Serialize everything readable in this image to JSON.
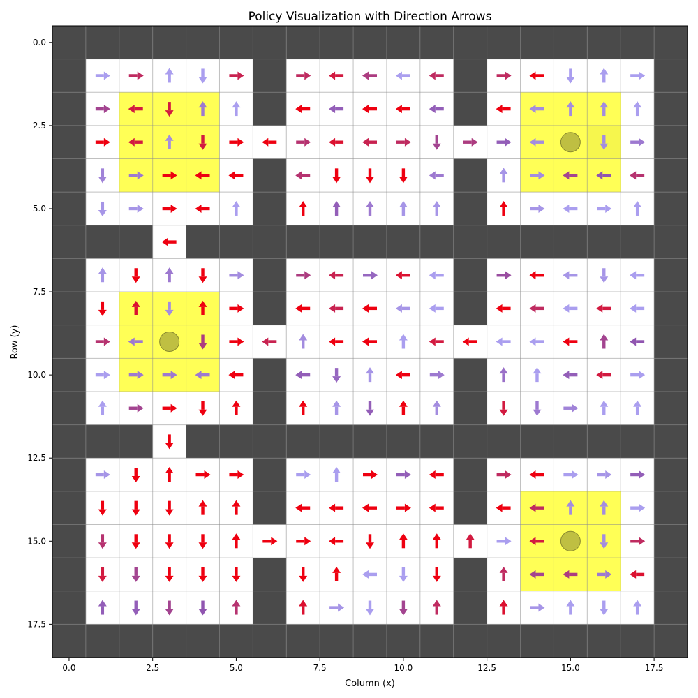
{
  "chart_data": {
    "type": "heatmap",
    "title": "Policy Visualization with Direction Arrows",
    "xlabel": "Column (x)",
    "ylabel": "Row (y)",
    "xlim": [
      -0.5,
      18.5
    ],
    "ylim": [
      18.5,
      -0.5
    ],
    "x_ticks": [
      0.0,
      2.5,
      5.0,
      7.5,
      10.0,
      12.5,
      15.0,
      17.5
    ],
    "x_tick_labels": [
      "0.0",
      "2.5",
      "5.0",
      "7.5",
      "10.0",
      "12.5",
      "15.0",
      "17.5"
    ],
    "y_ticks": [
      0.0,
      2.5,
      5.0,
      7.5,
      10.0,
      12.5,
      15.0,
      17.5
    ],
    "y_tick_labels": [
      "0.0",
      "2.5",
      "5.0",
      "7.5",
      "10.0",
      "12.5",
      "15.0",
      "17.5"
    ],
    "grid": true,
    "colors": {
      "wall": "#4a4a4a",
      "floor": "#ffffff",
      "region": "#ffff4d",
      "goal": "#b8b840",
      "grid_line": "#8c8c8c",
      "confidence_low": "#b0b0ff",
      "confidence_mid": "#9055b0",
      "confidence_high": "#ee0010"
    },
    "grid_rows": [
      "###################",
      "#.....#.....#.....#",
      "#.....#.....#.....#",
      "#...............#.#",
      "#.....#.....#.....#",
      "#.....#.....#.....#",
      "###.###############",
      "#.....#.....#.....#",
      "#.....#.....#.....#",
      "#.................#",
      "#.....#.....#.....#",
      "#.....#.....#.....#",
      "###.###############",
      "#.....#.....#.....#",
      "#.....#.....#.....#",
      "#.................#",
      "#.....#.....#.....#",
      "#.....#.....#.....#",
      "###################"
    ],
    "highlight_regions": [
      {
        "x": [
          2,
          4
        ],
        "y": [
          2,
          4
        ]
      },
      {
        "x": [
          14,
          16
        ],
        "y": [
          2,
          4
        ]
      },
      {
        "x": [
          2,
          4
        ],
        "y": [
          8,
          10
        ]
      },
      {
        "x": [
          14,
          16
        ],
        "y": [
          14,
          16
        ]
      }
    ],
    "goal_points": [
      [
        15,
        3
      ],
      [
        3,
        9
      ],
      [
        15,
        15
      ]
    ],
    "arrows": [
      [
        1,
        1,
        "R",
        0.1
      ],
      [
        2,
        1,
        "R",
        0.75
      ],
      [
        3,
        1,
        "U",
        0.1
      ],
      [
        4,
        1,
        "D",
        0.1
      ],
      [
        5,
        1,
        "R",
        0.8
      ],
      [
        7,
        1,
        "R",
        0.75
      ],
      [
        8,
        1,
        "L",
        0.85
      ],
      [
        9,
        1,
        "L",
        0.65
      ],
      [
        10,
        1,
        "L",
        0.1
      ],
      [
        11,
        1,
        "L",
        0.75
      ],
      [
        13,
        1,
        "R",
        0.75
      ],
      [
        14,
        1,
        "L",
        1
      ],
      [
        15,
        1,
        "D",
        0.1
      ],
      [
        16,
        1,
        "U",
        0.1
      ],
      [
        17,
        1,
        "R",
        0.1
      ],
      [
        1,
        2,
        "R",
        0.6
      ],
      [
        2,
        2,
        "L",
        0.85
      ],
      [
        3,
        2,
        "D",
        0.85
      ],
      [
        4,
        2,
        "U",
        0.3
      ],
      [
        5,
        2,
        "U",
        0.1
      ],
      [
        7,
        2,
        "L",
        1
      ],
      [
        8,
        2,
        "L",
        0.45
      ],
      [
        9,
        2,
        "L",
        1
      ],
      [
        10,
        2,
        "L",
        1
      ],
      [
        11,
        2,
        "L",
        0.45
      ],
      [
        13,
        2,
        "L",
        1
      ],
      [
        14,
        2,
        "L",
        0.2
      ],
      [
        15,
        2,
        "U",
        0.2
      ],
      [
        16,
        2,
        "U",
        0.2
      ],
      [
        17,
        2,
        "U",
        0.1
      ],
      [
        1,
        3,
        "R",
        1
      ],
      [
        2,
        3,
        "L",
        0.85
      ],
      [
        3,
        3,
        "U",
        0.2
      ],
      [
        4,
        3,
        "D",
        0.85
      ],
      [
        5,
        3,
        "R",
        1
      ],
      [
        6,
        3,
        "L",
        1
      ],
      [
        7,
        3,
        "R",
        0.7
      ],
      [
        8,
        3,
        "L",
        0.9
      ],
      [
        9,
        3,
        "L",
        0.8
      ],
      [
        10,
        3,
        "R",
        0.75
      ],
      [
        11,
        3,
        "D",
        0.6
      ],
      [
        12,
        3,
        "R",
        0.65
      ],
      [
        13,
        3,
        "R",
        0.45
      ],
      [
        14,
        3,
        "L",
        0.2
      ],
      [
        16,
        3,
        "D",
        0.2
      ],
      [
        17,
        3,
        "R",
        0.3
      ],
      [
        1,
        4,
        "D",
        0.25
      ],
      [
        2,
        4,
        "R",
        0.3
      ],
      [
        3,
        4,
        "R",
        1
      ],
      [
        4,
        4,
        "L",
        1
      ],
      [
        5,
        4,
        "L",
        1
      ],
      [
        7,
        4,
        "L",
        0.7
      ],
      [
        8,
        4,
        "D",
        1
      ],
      [
        9,
        4,
        "D",
        1
      ],
      [
        10,
        4,
        "D",
        1
      ],
      [
        11,
        4,
        "L",
        0.3
      ],
      [
        13,
        4,
        "U",
        0.15
      ],
      [
        14,
        4,
        "R",
        0.2
      ],
      [
        15,
        4,
        "L",
        0.6
      ],
      [
        16,
        4,
        "L",
        0.5
      ],
      [
        17,
        4,
        "L",
        0.7
      ],
      [
        1,
        5,
        "D",
        0.15
      ],
      [
        2,
        5,
        "R",
        0.15
      ],
      [
        3,
        5,
        "R",
        1
      ],
      [
        4,
        5,
        "L",
        1
      ],
      [
        5,
        5,
        "U",
        0.1
      ],
      [
        7,
        5,
        "U",
        1
      ],
      [
        8,
        5,
        "U",
        0.45
      ],
      [
        9,
        5,
        "U",
        0.3
      ],
      [
        10,
        5,
        "U",
        0.15
      ],
      [
        11,
        5,
        "U",
        0.15
      ],
      [
        13,
        5,
        "U",
        1
      ],
      [
        14,
        5,
        "R",
        0.15
      ],
      [
        15,
        5,
        "L",
        0.1
      ],
      [
        16,
        5,
        "R",
        0.1
      ],
      [
        17,
        5,
        "U",
        0.1
      ],
      [
        3,
        6,
        "L",
        1
      ],
      [
        1,
        7,
        "U",
        0.15
      ],
      [
        2,
        7,
        "D",
        1
      ],
      [
        3,
        7,
        "U",
        0.3
      ],
      [
        4,
        7,
        "D",
        1
      ],
      [
        5,
        7,
        "R",
        0.2
      ],
      [
        7,
        7,
        "R",
        0.65
      ],
      [
        8,
        7,
        "L",
        0.8
      ],
      [
        9,
        7,
        "R",
        0.4
      ],
      [
        10,
        7,
        "L",
        0.9
      ],
      [
        11,
        7,
        "L",
        0.1
      ],
      [
        13,
        7,
        "R",
        0.55
      ],
      [
        14,
        7,
        "L",
        1
      ],
      [
        15,
        7,
        "L",
        0.15
      ],
      [
        16,
        7,
        "D",
        0.15
      ],
      [
        17,
        7,
        "L",
        0.1
      ],
      [
        1,
        8,
        "D",
        1
      ],
      [
        2,
        8,
        "U",
        0.9
      ],
      [
        3,
        8,
        "D",
        0.2
      ],
      [
        4,
        8,
        "U",
        1
      ],
      [
        5,
        8,
        "R",
        1
      ],
      [
        7,
        8,
        "L",
        1
      ],
      [
        8,
        8,
        "L",
        0.8
      ],
      [
        9,
        8,
        "L",
        1
      ],
      [
        10,
        8,
        "L",
        0.15
      ],
      [
        11,
        8,
        "L",
        0.1
      ],
      [
        13,
        8,
        "L",
        1
      ],
      [
        14,
        8,
        "L",
        0.75
      ],
      [
        15,
        8,
        "L",
        0.1
      ],
      [
        16,
        8,
        "L",
        0.85
      ],
      [
        17,
        8,
        "L",
        0.1
      ],
      [
        1,
        9,
        "R",
        0.7
      ],
      [
        2,
        9,
        "L",
        0.3
      ],
      [
        4,
        9,
        "D",
        0.65
      ],
      [
        5,
        9,
        "R",
        1
      ],
      [
        6,
        9,
        "L",
        0.8
      ],
      [
        7,
        9,
        "U",
        0.2
      ],
      [
        8,
        9,
        "L",
        1
      ],
      [
        9,
        9,
        "L",
        1
      ],
      [
        10,
        9,
        "U",
        0.1
      ],
      [
        11,
        9,
        "L",
        0.85
      ],
      [
        12,
        9,
        "L",
        1
      ],
      [
        13,
        9,
        "L",
        0.1
      ],
      [
        14,
        9,
        "L",
        0.1
      ],
      [
        15,
        9,
        "L",
        1
      ],
      [
        16,
        9,
        "U",
        0.6
      ],
      [
        17,
        9,
        "L",
        0.5
      ],
      [
        1,
        10,
        "R",
        0.1
      ],
      [
        2,
        10,
        "R",
        0.3
      ],
      [
        3,
        10,
        "R",
        0.3
      ],
      [
        4,
        10,
        "L",
        0.3
      ],
      [
        5,
        10,
        "L",
        1
      ],
      [
        7,
        10,
        "L",
        0.45
      ],
      [
        8,
        10,
        "D",
        0.4
      ],
      [
        9,
        10,
        "U",
        0.15
      ],
      [
        10,
        10,
        "L",
        1
      ],
      [
        11,
        10,
        "R",
        0.3
      ],
      [
        13,
        10,
        "U",
        0.35
      ],
      [
        14,
        10,
        "U",
        0.1
      ],
      [
        15,
        10,
        "L",
        0.45
      ],
      [
        16,
        10,
        "L",
        0.85
      ],
      [
        17,
        10,
        "R",
        0.1
      ],
      [
        1,
        11,
        "U",
        0.1
      ],
      [
        2,
        11,
        "R",
        0.6
      ],
      [
        3,
        11,
        "R",
        1
      ],
      [
        4,
        11,
        "D",
        1
      ],
      [
        5,
        11,
        "U",
        1
      ],
      [
        7,
        11,
        "U",
        1
      ],
      [
        8,
        11,
        "U",
        0.15
      ],
      [
        9,
        11,
        "D",
        0.45
      ],
      [
        10,
        11,
        "U",
        1
      ],
      [
        11,
        11,
        "U",
        0.2
      ],
      [
        13,
        11,
        "D",
        0.85
      ],
      [
        14,
        11,
        "D",
        0.3
      ],
      [
        15,
        11,
        "R",
        0.25
      ],
      [
        16,
        11,
        "U",
        0.1
      ],
      [
        17,
        11,
        "U",
        0.1
      ],
      [
        3,
        12,
        "D",
        1
      ],
      [
        1,
        13,
        "R",
        0.15
      ],
      [
        2,
        13,
        "D",
        1
      ],
      [
        3,
        13,
        "U",
        1
      ],
      [
        4,
        13,
        "R",
        1
      ],
      [
        5,
        13,
        "R",
        1
      ],
      [
        7,
        13,
        "R",
        0.1
      ],
      [
        8,
        13,
        "U",
        0.1
      ],
      [
        9,
        13,
        "R",
        1
      ],
      [
        10,
        13,
        "R",
        0.45
      ],
      [
        11,
        13,
        "L",
        1
      ],
      [
        13,
        13,
        "R",
        0.75
      ],
      [
        14,
        13,
        "L",
        1
      ],
      [
        15,
        13,
        "R",
        0.1
      ],
      [
        16,
        13,
        "R",
        0.15
      ],
      [
        17,
        13,
        "R",
        0.45
      ],
      [
        1,
        14,
        "D",
        1
      ],
      [
        2,
        14,
        "D",
        1
      ],
      [
        3,
        14,
        "D",
        1
      ],
      [
        4,
        14,
        "U",
        1
      ],
      [
        5,
        14,
        "U",
        1
      ],
      [
        7,
        14,
        "L",
        1
      ],
      [
        8,
        14,
        "L",
        1
      ],
      [
        9,
        14,
        "L",
        1
      ],
      [
        10,
        14,
        "R",
        1
      ],
      [
        11,
        14,
        "L",
        1
      ],
      [
        13,
        14,
        "L",
        1
      ],
      [
        14,
        14,
        "L",
        0.75
      ],
      [
        15,
        14,
        "U",
        0.2
      ],
      [
        16,
        14,
        "U",
        0.2
      ],
      [
        17,
        14,
        "R",
        0.1
      ],
      [
        1,
        15,
        "D",
        0.7
      ],
      [
        2,
        15,
        "D",
        1
      ],
      [
        3,
        15,
        "D",
        1
      ],
      [
        4,
        15,
        "D",
        1
      ],
      [
        5,
        15,
        "U",
        1
      ],
      [
        6,
        15,
        "R",
        1
      ],
      [
        7,
        15,
        "R",
        1
      ],
      [
        8,
        15,
        "L",
        1
      ],
      [
        9,
        15,
        "D",
        1
      ],
      [
        10,
        15,
        "U",
        1
      ],
      [
        11,
        15,
        "U",
        1
      ],
      [
        12,
        15,
        "U",
        0.85
      ],
      [
        13,
        15,
        "R",
        0.1
      ],
      [
        14,
        15,
        "L",
        0.85
      ],
      [
        16,
        15,
        "D",
        0.2
      ],
      [
        17,
        15,
        "R",
        0.75
      ],
      [
        1,
        16,
        "D",
        0.85
      ],
      [
        2,
        16,
        "D",
        0.6
      ],
      [
        3,
        16,
        "D",
        1
      ],
      [
        4,
        16,
        "D",
        1
      ],
      [
        5,
        16,
        "D",
        1
      ],
      [
        7,
        16,
        "D",
        1
      ],
      [
        8,
        16,
        "U",
        1
      ],
      [
        9,
        16,
        "L",
        0.1
      ],
      [
        10,
        16,
        "D",
        0.1
      ],
      [
        11,
        16,
        "D",
        1
      ],
      [
        13,
        16,
        "U",
        0.75
      ],
      [
        14,
        16,
        "L",
        0.6
      ],
      [
        15,
        16,
        "L",
        0.65
      ],
      [
        16,
        16,
        "R",
        0.3
      ],
      [
        17,
        16,
        "L",
        0.9
      ],
      [
        1,
        17,
        "U",
        0.45
      ],
      [
        2,
        17,
        "D",
        0.45
      ],
      [
        3,
        17,
        "D",
        0.6
      ],
      [
        4,
        17,
        "D",
        0.5
      ],
      [
        5,
        17,
        "U",
        0.7
      ],
      [
        7,
        17,
        "U",
        0.9
      ],
      [
        8,
        17,
        "R",
        0.15
      ],
      [
        9,
        17,
        "D",
        0.1
      ],
      [
        10,
        17,
        "D",
        0.6
      ],
      [
        11,
        17,
        "U",
        0.75
      ],
      [
        13,
        17,
        "U",
        0.9
      ],
      [
        14,
        17,
        "R",
        0.15
      ],
      [
        15,
        17,
        "U",
        0.1
      ],
      [
        16,
        17,
        "D",
        0.1
      ],
      [
        17,
        17,
        "U",
        0.1
      ]
    ]
  }
}
